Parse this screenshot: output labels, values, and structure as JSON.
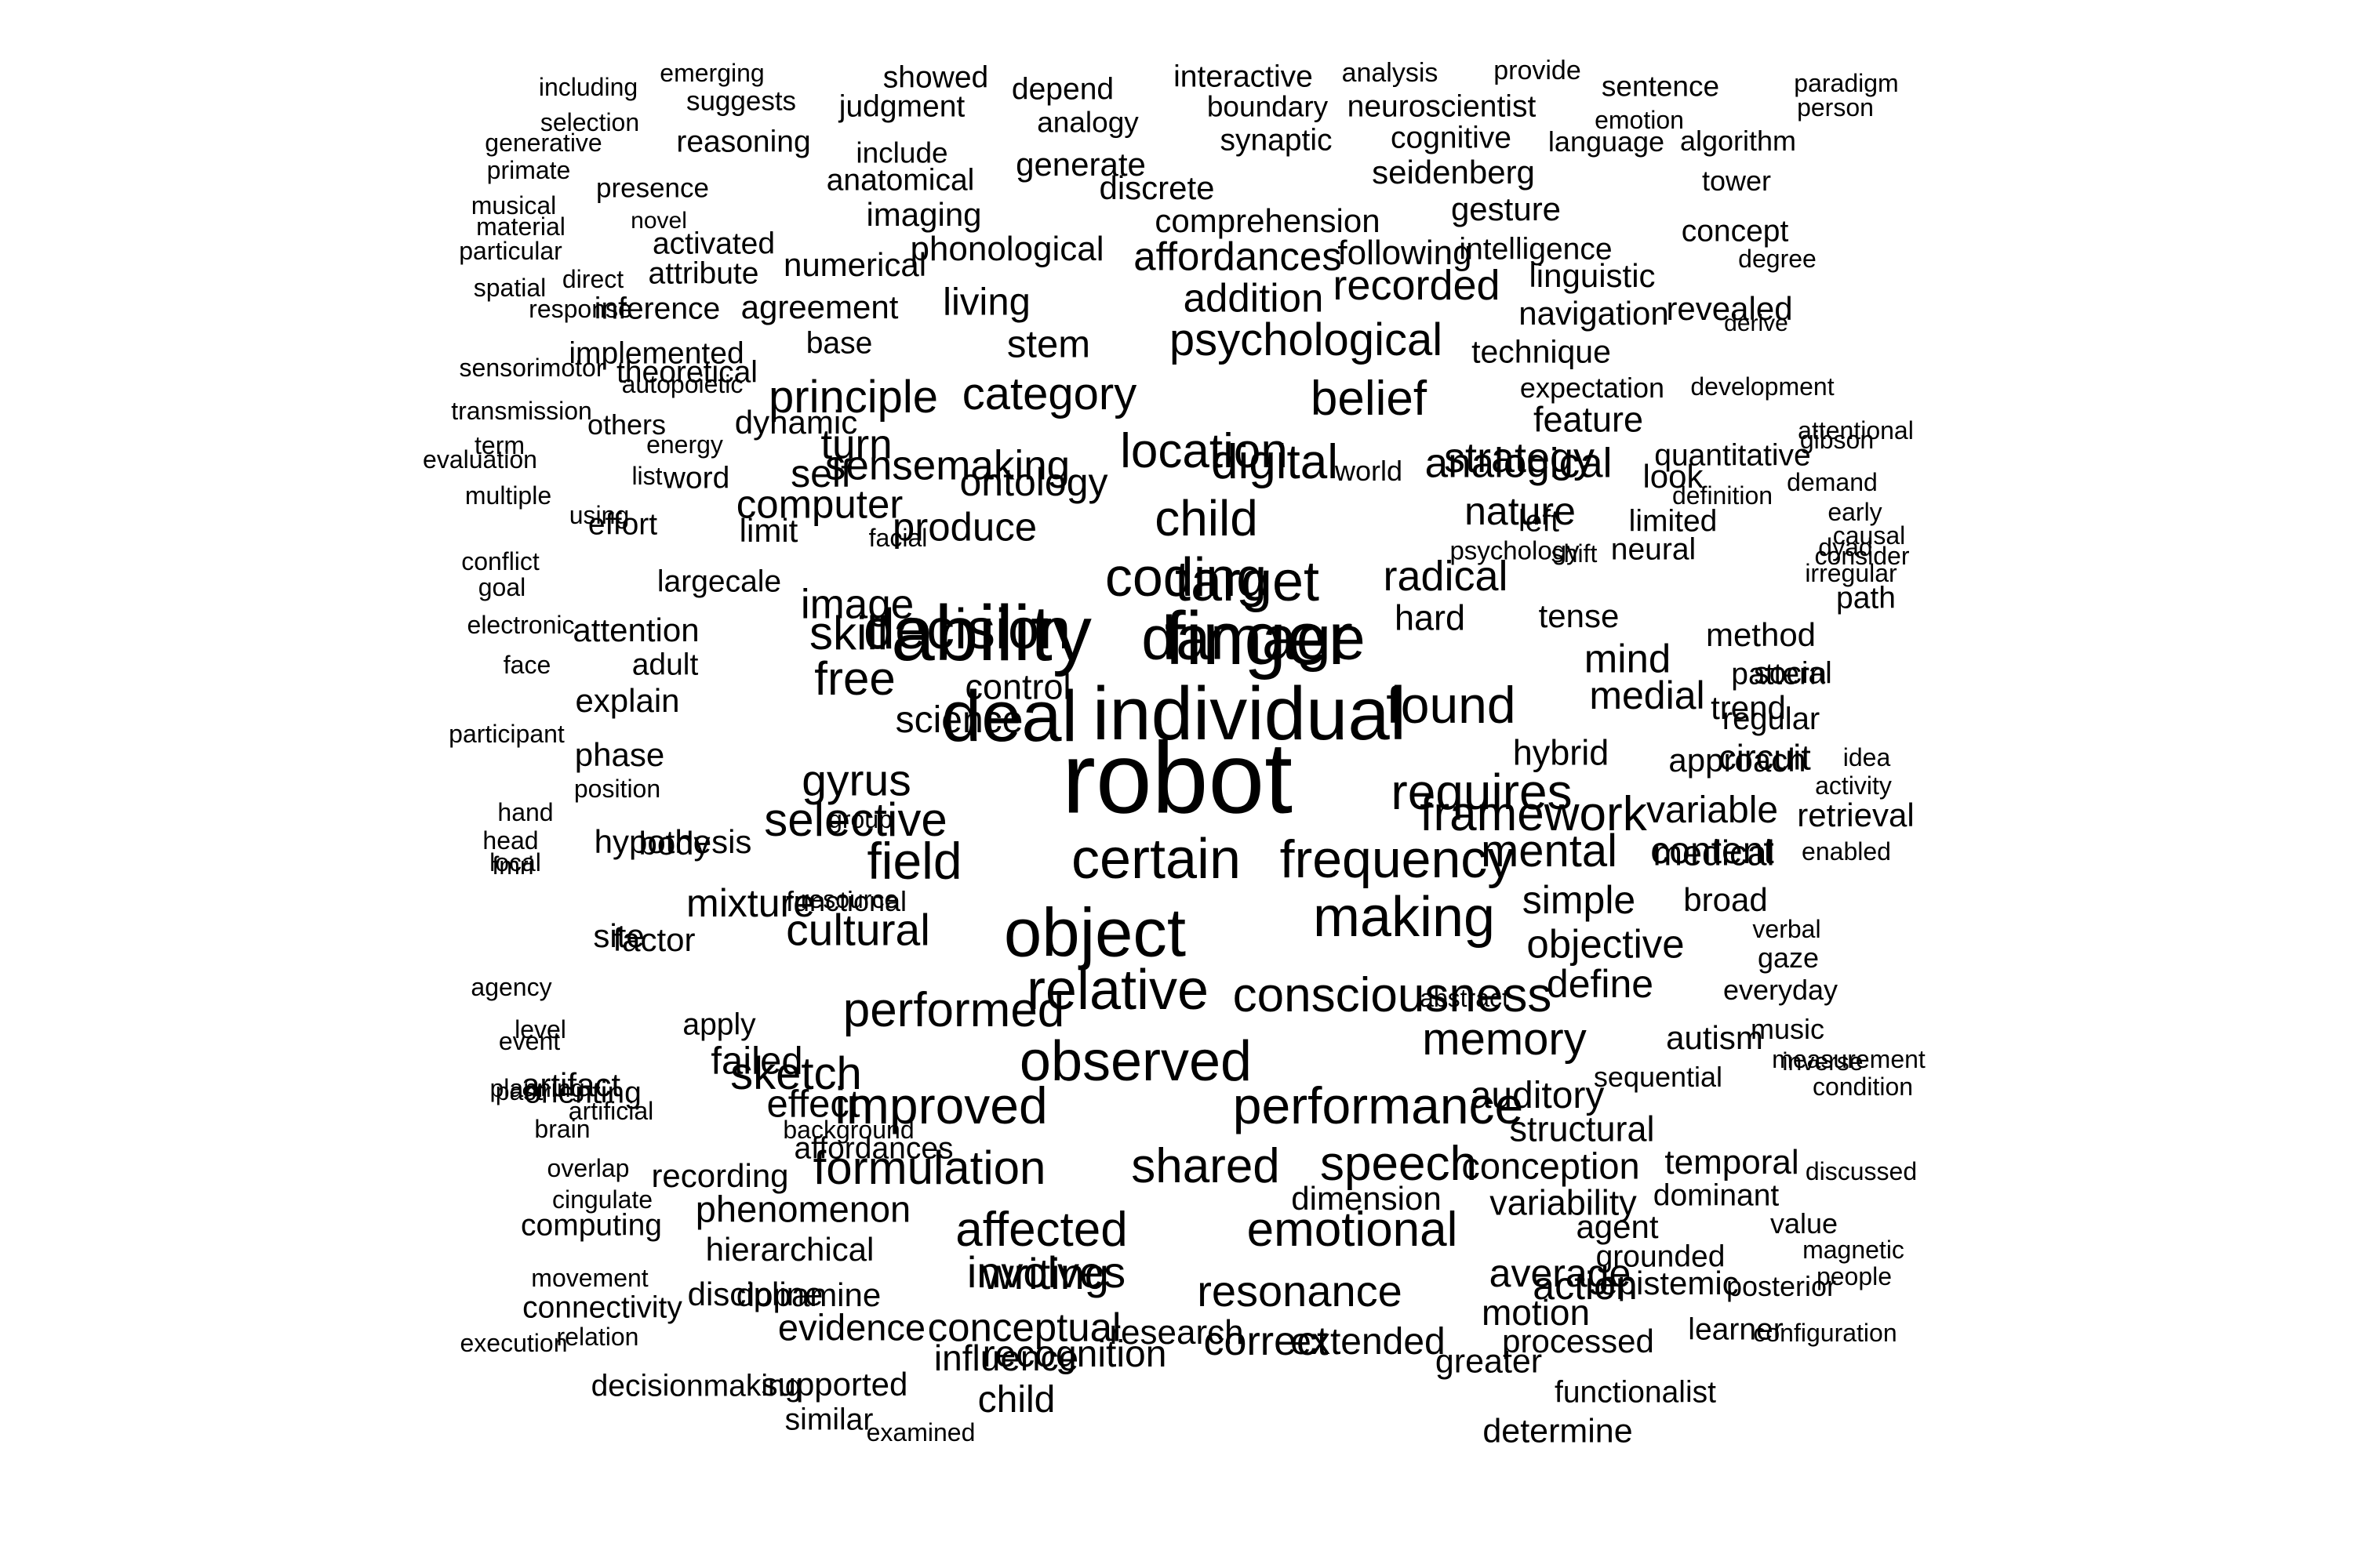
{
  "words": [
    "including",
    "emerging",
    "showed",
    "depend",
    "interactive",
    "analysis",
    "provide",
    "sentence",
    "paradigm",
    "selection",
    "suggests",
    "judgment",
    "analogy",
    "boundary",
    "neuroscientist",
    "emotion",
    "person",
    "generative",
    "reasoning",
    "include",
    "synaptic",
    "cognitive",
    "language",
    "algorithm",
    "primate",
    "presence",
    "anatomical",
    "generate",
    "seidenberg",
    "musical",
    "novel",
    "imaging",
    "discrete",
    "comprehension",
    "gesture",
    "tower",
    "material",
    "activated",
    "phonological",
    "affordances",
    "following",
    "intelligence",
    "concept",
    "particular",
    "direct",
    "attribute",
    "numerical",
    "recorded",
    "linguistic",
    "degree",
    "spatial",
    "response",
    "inference",
    "agreement",
    "living",
    "addition",
    "navigation",
    "revealed",
    "derive",
    "implemented",
    "theoretical",
    "base",
    "stem",
    "psychological",
    "technique",
    "expectation",
    "development",
    "sensorimotor",
    "autopoietic",
    "principle",
    "category",
    "belief",
    "feature",
    "attentional",
    "quantitative",
    "transmission",
    "others",
    "dynamic",
    "turn",
    "location",
    "strategy",
    "gibson",
    "look",
    "definition",
    "term",
    "energy",
    "word",
    "self",
    "ontology",
    "analogical",
    "demand",
    "evaluation",
    "list",
    "sensemaking",
    "digital",
    "left",
    "world",
    "limited",
    "early",
    "consider",
    "multiple",
    "using",
    "computer",
    "child",
    "nature",
    "causal",
    "neural",
    "dyad",
    "conflict",
    "effort",
    "limit",
    "facial",
    "produce",
    "coding",
    "radical",
    "shift",
    "irregular",
    "goal",
    "largecale",
    "image",
    "target",
    "hard",
    "psychology",
    "path",
    "electronic",
    "attention",
    "skill",
    "decision",
    "damage",
    "tense",
    "method",
    "pattern",
    "face",
    "adult",
    "ability",
    "finger",
    "mind",
    "social",
    "explain",
    "free",
    "deal",
    "individual",
    "found",
    "medial",
    "trend",
    "regular",
    "participant",
    "phase",
    "science",
    "control",
    "hybrid",
    "approach",
    "circuit",
    "idea",
    "position",
    "gyrus",
    "robot",
    "requires",
    "variable",
    "activity",
    "hand",
    "head",
    "selective",
    "framework",
    "medical",
    "retrieval",
    "local",
    "hypothesis",
    "group",
    "mental",
    "content",
    "enabled",
    "fmri",
    "body",
    "field",
    "certain",
    "frequency",
    "simple",
    "broad",
    "verbal",
    "agency",
    "site",
    "resource",
    "object",
    "making",
    "objective",
    "gaze",
    "level",
    "factor",
    "functional",
    "mixture",
    "cultural",
    "consciousness",
    "define",
    "everyday",
    "event",
    "relative",
    "abstract",
    "memory",
    "autism",
    "music",
    "past",
    "orienting",
    "sketch",
    "performed",
    "measurement",
    "apply",
    "failed",
    "observed",
    "planning",
    "artifact",
    "effect",
    "improved",
    "auditory",
    "sequential",
    "inverse",
    "condition",
    "brain",
    "artificial",
    "performance",
    "structural",
    "affordances",
    "background",
    "formulation",
    "shared",
    "speech",
    "conception",
    "temporal",
    "discussed",
    "overlap",
    "recording",
    "dimension",
    "variability",
    "dominant",
    "cingulate",
    "phenomenon",
    "affected",
    "emotional",
    "agent",
    "value",
    "execution",
    "computing",
    "hierarchical",
    "involves",
    "average",
    "grounded",
    "magnetic",
    "movement",
    "connectivity",
    "discipline",
    "writing",
    "resonance",
    "action",
    "epistemic",
    "people",
    "relation",
    "dopamine",
    "conceptual",
    "correct",
    "motion",
    "posterior",
    "evidence",
    "recognition",
    "extended",
    "processed",
    "learner",
    "configuration",
    "decisionmaking",
    "supported",
    "influence",
    "research",
    "greater",
    "functionalist",
    "similar",
    "child",
    "examined",
    "determine"
  ]
}
